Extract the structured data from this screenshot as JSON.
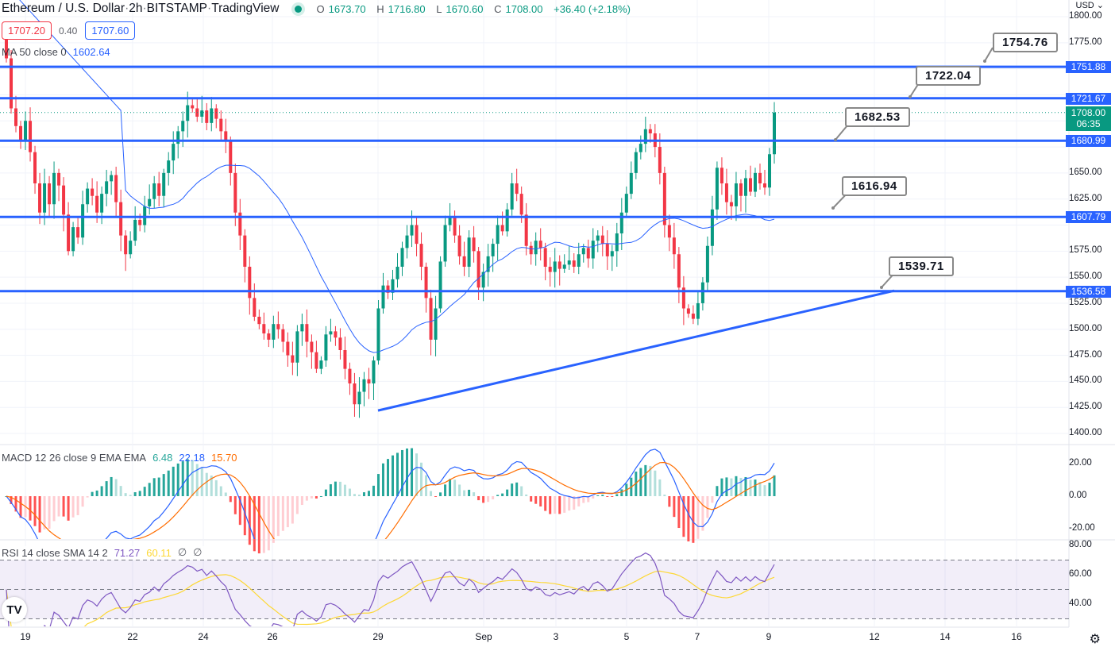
{
  "header": {
    "symbol": "Ethereum / U.S. Dollar",
    "interval": "2h",
    "exchange": "BITSTAMP",
    "source": "TradingView",
    "sep": " · ",
    "market_status_color": "#089981",
    "ohlc": {
      "o_label": "O",
      "o": "1673.70",
      "h_label": "H",
      "h": "1716.80",
      "l_label": "L",
      "l": "1670.60",
      "c_label": "C",
      "c": "1708.00",
      "change": "+36.40 (+2.18%)"
    }
  },
  "quote": {
    "bid": "1707.20",
    "spread": "0.40",
    "ask": "1707.60"
  },
  "indicators": {
    "ma": {
      "label": "MA 50 close 0",
      "value": "1602.64"
    },
    "macd": {
      "label": "MACD 12 26 close 9 EMA EMA",
      "hist": "6.48",
      "macd": "22.18",
      "signal": "15.70"
    },
    "rsi": {
      "label": "RSI 14 close SMA 14 2",
      "rsi": "71.27",
      "sma": "60.11",
      "extra1": "∅",
      "extra2": "∅"
    }
  },
  "price_axis": {
    "currency": "USD ⌄",
    "ticks": [
      "1800.00",
      "1775.00",
      "1650.00",
      "1625.00",
      "1575.00",
      "1550.00",
      "1525.00",
      "1500.00",
      "1475.00",
      "1450.00",
      "1425.00",
      "1400.00"
    ],
    "level_tags": [
      "1751.88",
      "1721.67",
      "1680.99",
      "1607.79",
      "1536.58"
    ],
    "last_price": "1708.00",
    "countdown": "06:35"
  },
  "macd_axis": {
    "ticks": [
      "20.00",
      "0.00",
      "-20.00"
    ]
  },
  "rsi_axis": {
    "ticks": [
      "80.00",
      "60.00",
      "40.00"
    ]
  },
  "time_axis": {
    "ticks": [
      "19",
      "22",
      "24",
      "26",
      "29",
      "Sep",
      "3",
      "5",
      "7",
      "9",
      "12",
      "14",
      "16"
    ]
  },
  "callouts": [
    "1754.76",
    "1722.04",
    "1682.53",
    "1616.94",
    "1539.71"
  ],
  "logo": "TV",
  "settings_icon": "⚙",
  "colors": {
    "up": "#089981",
    "down": "#f23645",
    "level": "#2962ff",
    "ma": "#2962ff",
    "macd": "#2962ff",
    "signal": "#ff6d00",
    "rsi": "#7e57c2",
    "rsi_sma": "#fdd835"
  },
  "chart_data": {
    "type": "candlestick",
    "title": "Ethereum / U.S. Dollar · 2h · BITSTAMP",
    "xlabel": "",
    "ylabel": "USD",
    "ylim": [
      1400,
      1800
    ],
    "x_ticks": [
      "19",
      "22",
      "24",
      "26",
      "29",
      "Sep",
      "3",
      "5",
      "7",
      "9",
      "12",
      "14",
      "16"
    ],
    "horizontal_levels": [
      1751.88,
      1721.67,
      1680.99,
      1607.79,
      1536.58
    ],
    "callout_labels": [
      1754.76,
      1722.04,
      1682.53,
      1616.94,
      1539.71
    ],
    "trendline": {
      "from": {
        "date": "Aug 29",
        "price": 1422
      },
      "to": {
        "date": "Sep 12",
        "price": 1537
      }
    },
    "close_path": [
      1760,
      1712,
      1695,
      1680,
      1700,
      1670,
      1640,
      1612,
      1640,
      1620,
      1650,
      1638,
      1610,
      1575,
      1598,
      1588,
      1620,
      1635,
      1628,
      1612,
      1630,
      1642,
      1648,
      1622,
      1590,
      1572,
      1585,
      1605,
      1600,
      1618,
      1625,
      1640,
      1628,
      1650,
      1662,
      1678,
      1690,
      1700,
      1715,
      1712,
      1704,
      1710,
      1698,
      1712,
      1702,
      1690,
      1680,
      1650,
      1612,
      1590,
      1560,
      1530,
      1512,
      1505,
      1496,
      1490,
      1505,
      1500,
      1488,
      1475,
      1468,
      1498,
      1505,
      1488,
      1478,
      1462,
      1470,
      1495,
      1498,
      1492,
      1480,
      1462,
      1448,
      1428,
      1440,
      1452,
      1448,
      1470,
      1520,
      1542,
      1535,
      1548,
      1560,
      1578,
      1590,
      1600,
      1582,
      1560,
      1530,
      1490,
      1520,
      1565,
      1600,
      1608,
      1590,
      1570,
      1560,
      1588,
      1575,
      1540,
      1555,
      1570,
      1582,
      1600,
      1594,
      1615,
      1640,
      1630,
      1610,
      1580,
      1572,
      1585,
      1578,
      1560,
      1555,
      1565,
      1558,
      1562,
      1566,
      1560,
      1572,
      1578,
      1568,
      1585,
      1590,
      1582,
      1570,
      1575,
      1592,
      1612,
      1630,
      1650,
      1670,
      1678,
      1692,
      1688,
      1675,
      1650,
      1600,
      1588,
      1572,
      1540,
      1520,
      1515,
      1510,
      1525,
      1545,
      1580,
      1615,
      1655,
      1640,
      1622,
      1618,
      1640,
      1628,
      1645,
      1632,
      1650,
      1640,
      1636,
      1668,
      1708
    ],
    "ma50_last": 1602.64,
    "macd": {
      "hist_last": 6.48,
      "macd_last": 22.18,
      "signal_last": 15.7,
      "ylim": [
        -25,
        25
      ]
    },
    "rsi": {
      "rsi_last": 71.27,
      "sma_last": 60.11,
      "bands": [
        70,
        50,
        30
      ]
    }
  }
}
